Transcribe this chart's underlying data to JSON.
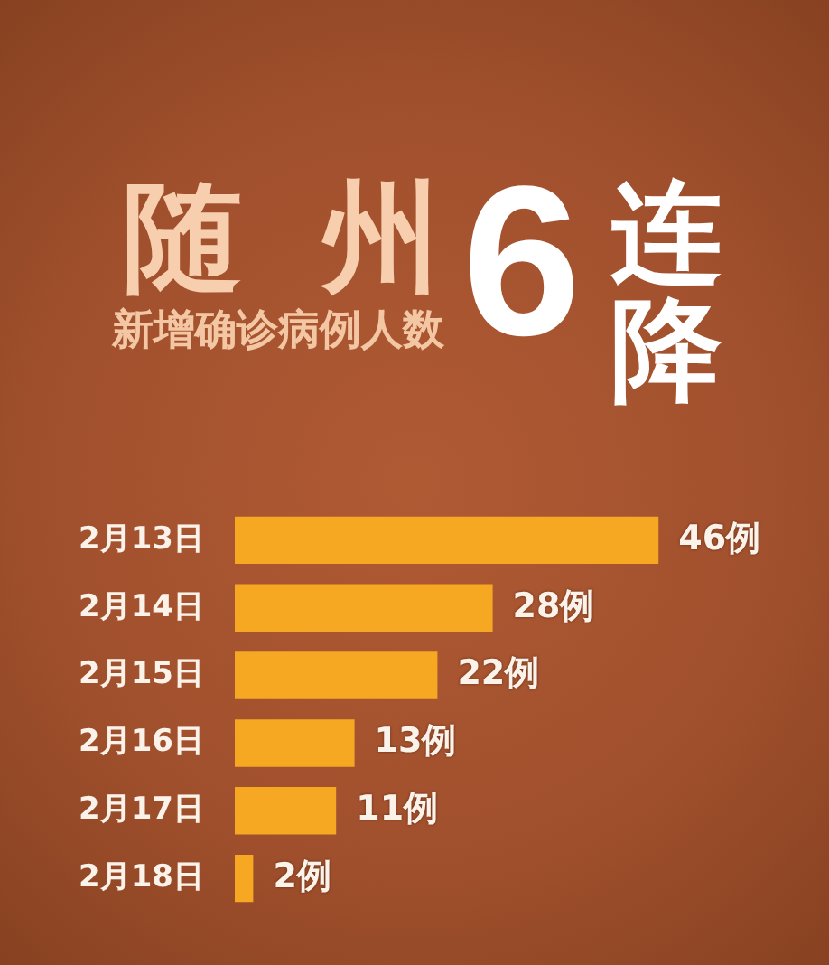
{
  "chart_data": {
    "type": "bar",
    "orientation": "horizontal",
    "title": "随州",
    "subtitle": "新增确诊病例人数",
    "annotations": [
      "6",
      "连降"
    ],
    "categories": [
      "2月13日",
      "2月14日",
      "2月15日",
      "2月16日",
      "2月17日",
      "2月18日"
    ],
    "values": [
      46,
      28,
      22,
      13,
      11,
      2
    ],
    "color": "#f7a823",
    "value_labels": [
      "46例",
      "28例",
      "22例",
      "13例",
      "11例",
      "2例"
    ]
  }
}
